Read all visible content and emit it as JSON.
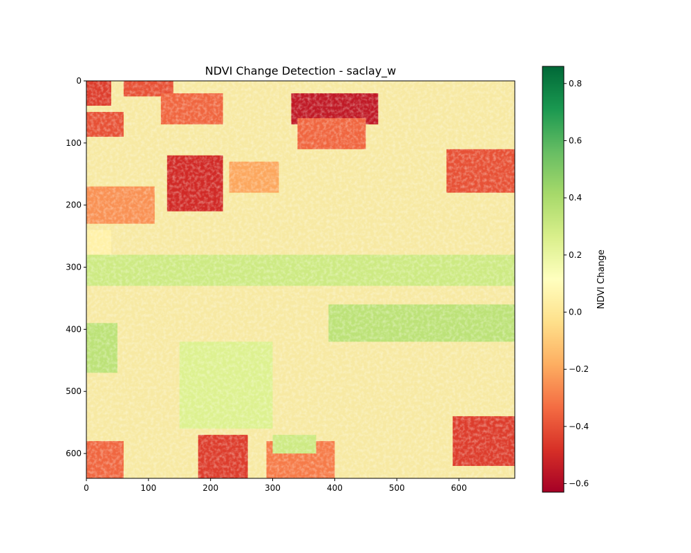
{
  "chart_data": {
    "type": "heatmap",
    "title": "NDVI Change Detection - saclay_w",
    "xlabel": "",
    "ylabel": "",
    "xlim": [
      0,
      690
    ],
    "ylim": [
      640,
      0
    ],
    "x_ticks": [
      0,
      100,
      200,
      300,
      400,
      500,
      600
    ],
    "y_ticks": [
      0,
      100,
      200,
      300,
      400,
      500,
      600
    ],
    "colorbar": {
      "label": "NDVI Change",
      "colormap": "RdYlGn",
      "vmin": -0.63,
      "vmax": 0.86,
      "ticks": [
        -0.6,
        -0.4,
        -0.2,
        0.0,
        0.2,
        0.4,
        0.6,
        0.8
      ],
      "tick_labels": [
        "−0.6",
        "−0.4",
        "−0.2",
        "0.0",
        "0.2",
        "0.4",
        "0.6",
        "0.8"
      ]
    },
    "regions": [
      {
        "x": [
          0,
          40
        ],
        "y": [
          0,
          40
        ],
        "value": -0.45
      },
      {
        "x": [
          60,
          140
        ],
        "y": [
          0,
          25
        ],
        "value": -0.4
      },
      {
        "x": [
          120,
          220
        ],
        "y": [
          20,
          70
        ],
        "value": -0.35
      },
      {
        "x": [
          0,
          60
        ],
        "y": [
          50,
          90
        ],
        "value": -0.4
      },
      {
        "x": [
          330,
          470
        ],
        "y": [
          20,
          70
        ],
        "value": -0.55
      },
      {
        "x": [
          340,
          450
        ],
        "y": [
          60,
          110
        ],
        "value": -0.35
      },
      {
        "x": [
          130,
          220
        ],
        "y": [
          120,
          210
        ],
        "value": -0.5
      },
      {
        "x": [
          230,
          310
        ],
        "y": [
          130,
          180
        ],
        "value": -0.2
      },
      {
        "x": [
          580,
          690
        ],
        "y": [
          110,
          180
        ],
        "value": -0.4
      },
      {
        "x": [
          0,
          110
        ],
        "y": [
          170,
          230
        ],
        "value": -0.25
      },
      {
        "x": [
          0,
          40
        ],
        "y": [
          240,
          280
        ],
        "value": 0.05
      },
      {
        "x": [
          0,
          690
        ],
        "y": [
          280,
          330
        ],
        "value": 0.3
      },
      {
        "x": [
          390,
          690
        ],
        "y": [
          360,
          420
        ],
        "value": 0.35
      },
      {
        "x": [
          0,
          50
        ],
        "y": [
          390,
          470
        ],
        "value": 0.35
      },
      {
        "x": [
          150,
          300
        ],
        "y": [
          420,
          560
        ],
        "value": 0.25
      },
      {
        "x": [
          180,
          260
        ],
        "y": [
          570,
          640
        ],
        "value": -0.45
      },
      {
        "x": [
          290,
          400
        ],
        "y": [
          580,
          640
        ],
        "value": -0.3
      },
      {
        "x": [
          590,
          690
        ],
        "y": [
          540,
          620
        ],
        "value": -0.45
      },
      {
        "x": [
          0,
          60
        ],
        "y": [
          580,
          640
        ],
        "value": -0.35
      },
      {
        "x": [
          300,
          370
        ],
        "y": [
          570,
          600
        ],
        "value": 0.3
      }
    ]
  }
}
